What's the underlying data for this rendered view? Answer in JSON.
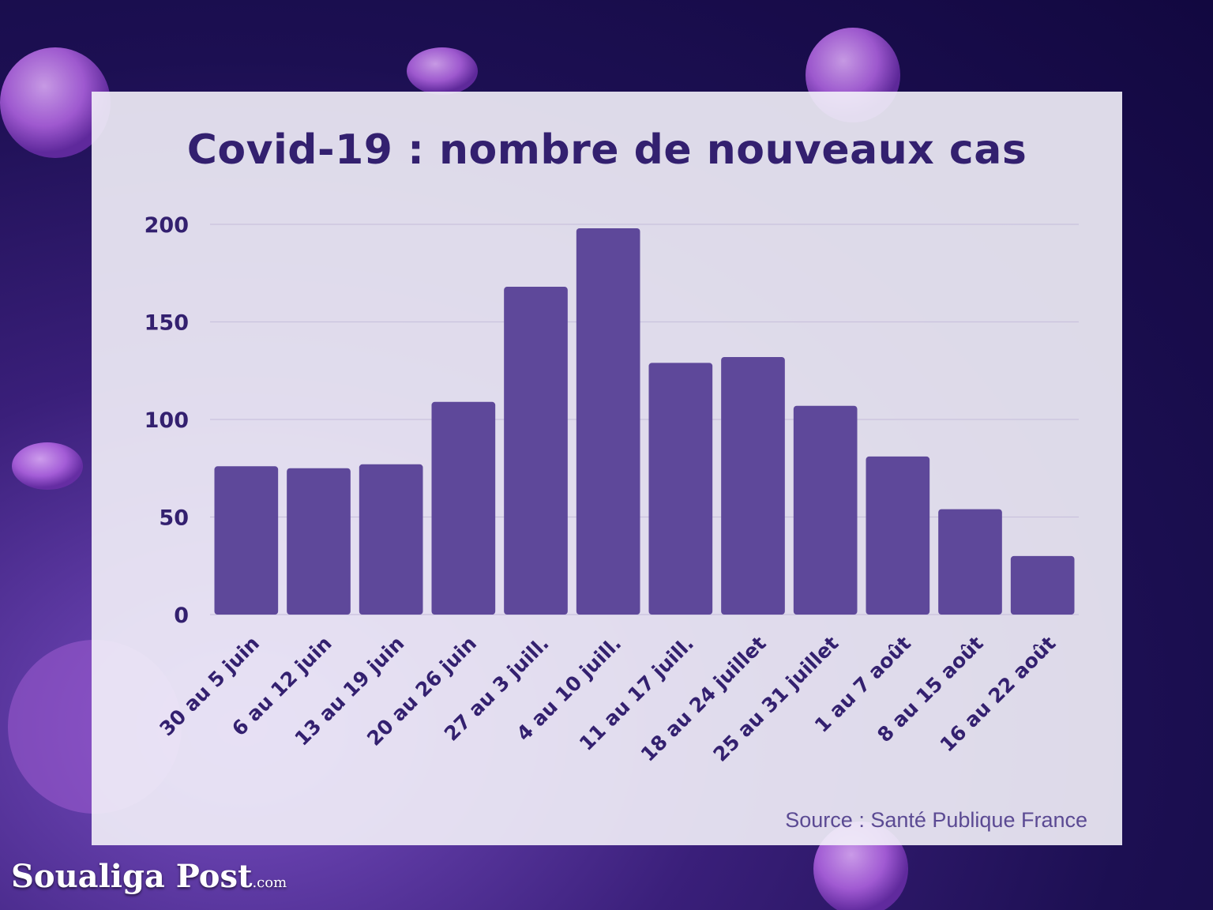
{
  "chart_data": {
    "type": "bar",
    "title": "Covid-19 : nombre de nouveaux cas",
    "xlabel": "",
    "ylabel": "",
    "ylim": [
      0,
      200
    ],
    "yticks": [
      0,
      50,
      100,
      150,
      200
    ],
    "grid": true,
    "categories": [
      "30 au 5 juin",
      "6 au 12 juin",
      "13 au 19 juin",
      "20 au 26 juin",
      "27 au 3 juill.",
      "4 au 10 juill.",
      "11 au 17 juill.",
      "18 au 24 juillet",
      "25 au 31 juillet",
      "1 au 7 août",
      "8 au 15 août",
      "16 au 22 août"
    ],
    "values": [
      76,
      75,
      77,
      109,
      168,
      198,
      129,
      132,
      107,
      81,
      54,
      30
    ],
    "bar_color": "#5e489a",
    "source": "Source : Santé Publique France"
  },
  "branding": {
    "logo_text": "Soualiga Post",
    "logo_suffix": ".com"
  }
}
